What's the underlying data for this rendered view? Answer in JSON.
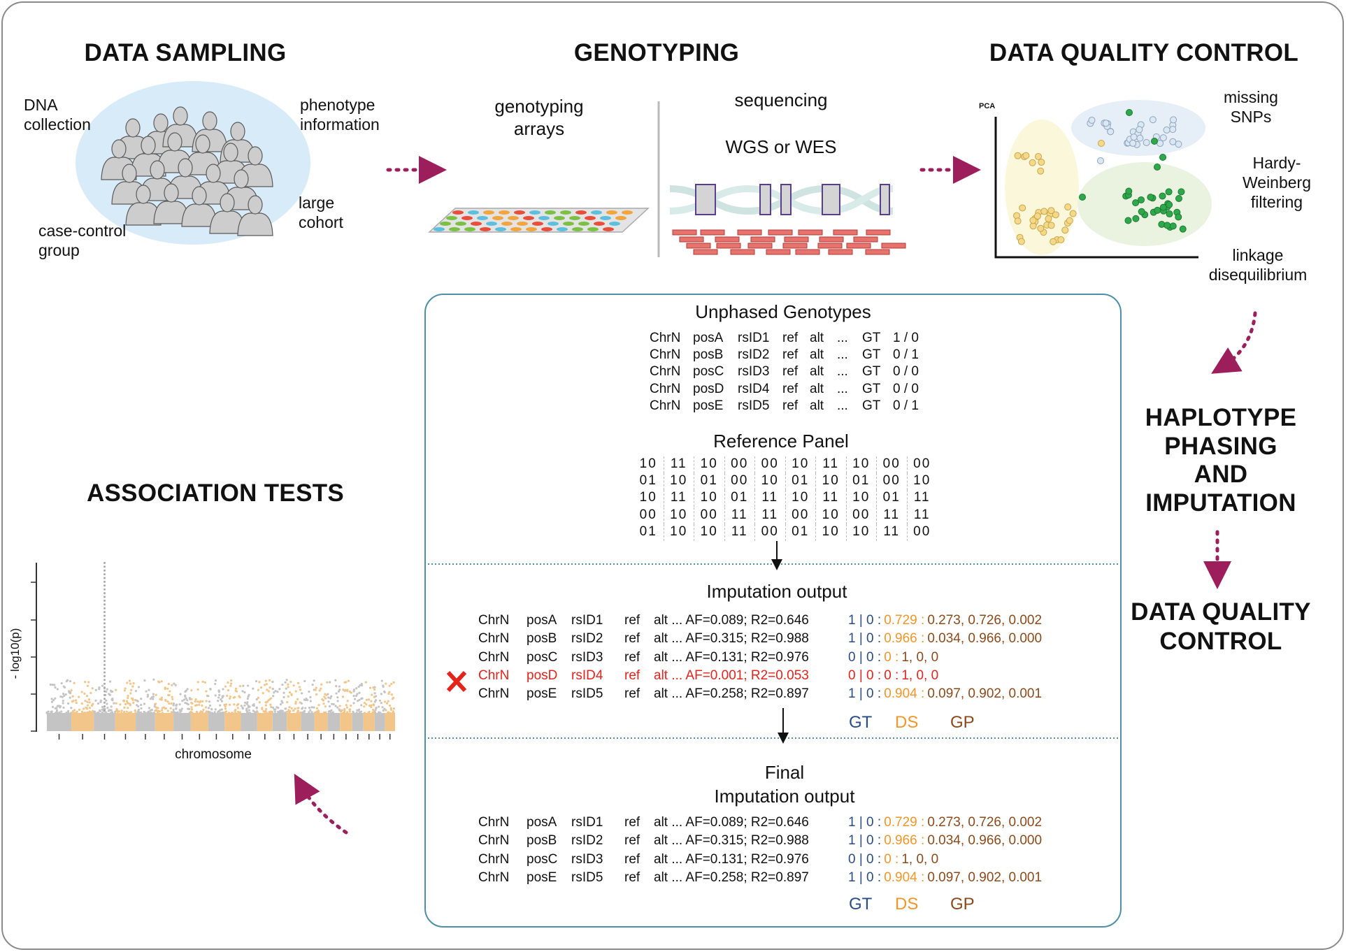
{
  "sections": {
    "data_sampling": {
      "title": "DATA SAMPLING",
      "labels": {
        "dna": "DNA collection",
        "phenotype": "phenotype information",
        "cohort": "large cohort",
        "case_control": "case-control group"
      }
    },
    "genotyping": {
      "title": "GENOTYPING",
      "arrays_label": "genotyping arrays",
      "sequencing_label": "sequencing",
      "wgs_label": "WGS or WES"
    },
    "qc_top": {
      "title": "DATA QUALITY CONTROL",
      "pca_label": "PCA",
      "missing": "missing SNPs",
      "hwe": "Hardy-Weinberg filtering",
      "ld": "linkage disequilibrium"
    },
    "phasing": {
      "title_lines": [
        "HAPLOTYPE",
        "PHASING",
        "AND",
        "IMPUTATION"
      ],
      "qc_lines": [
        "DATA QUALITY",
        "CONTROL"
      ]
    },
    "association": {
      "title": "ASSOCIATION TESTS",
      "ylabel": "- log10(p)",
      "xlabel": "chromosome"
    }
  },
  "colors": {
    "arrow": "#9c1f5c",
    "gt": "#2b4d86",
    "ds": "#f0962a",
    "gp": "#8a4a1c",
    "removed": "#e3241c",
    "panel_border": "#4d8fa6"
  },
  "panel": {
    "unphased": {
      "title": "Unphased Genotypes",
      "rows": [
        {
          "chr": "ChrN",
          "pos": "posA",
          "rsid": "rsID1",
          "ref": "ref",
          "alt": "alt",
          "dots": "...",
          "gt_label": "GT",
          "gt": "1 / 0"
        },
        {
          "chr": "ChrN",
          "pos": "posB",
          "rsid": "rsID2",
          "ref": "ref",
          "alt": "alt",
          "dots": "...",
          "gt_label": "GT",
          "gt": "0 / 1"
        },
        {
          "chr": "ChrN",
          "pos": "posC",
          "rsid": "rsID3",
          "ref": "ref",
          "alt": "alt",
          "dots": "...",
          "gt_label": "GT",
          "gt": "0 / 0"
        },
        {
          "chr": "ChrN",
          "pos": "posD",
          "rsid": "rsID4",
          "ref": "ref",
          "alt": "alt",
          "dots": "...",
          "gt_label": "GT",
          "gt": "0 / 0"
        },
        {
          "chr": "ChrN",
          "pos": "posE",
          "rsid": "rsID5",
          "ref": "ref",
          "alt": "alt",
          "dots": "...",
          "gt_label": "GT",
          "gt": "0 / 1"
        }
      ]
    },
    "reference": {
      "title": "Reference Panel",
      "rows": [
        [
          "10",
          "11",
          "10",
          "00",
          "00",
          "10",
          "11",
          "10",
          "00",
          "00"
        ],
        [
          "01",
          "10",
          "01",
          "00",
          "10",
          "01",
          "10",
          "01",
          "00",
          "10"
        ],
        [
          "10",
          "11",
          "10",
          "01",
          "11",
          "10",
          "11",
          "10",
          "01",
          "11"
        ],
        [
          "00",
          "10",
          "00",
          "11",
          "11",
          "00",
          "10",
          "00",
          "11",
          "11"
        ],
        [
          "01",
          "10",
          "10",
          "11",
          "00",
          "01",
          "10",
          "10",
          "11",
          "00"
        ]
      ]
    },
    "imputation": {
      "title": "Imputation output",
      "rows": [
        {
          "chr": "ChrN",
          "pos": "posA",
          "rsid": "rsID1",
          "ref": "ref",
          "info": "alt ... AF=0.089; R2=0.646",
          "gt": "1 | 0",
          "ds": "0.729",
          "gp": "0.273, 0.726, 0.002",
          "removed": false
        },
        {
          "chr": "ChrN",
          "pos": "posB",
          "rsid": "rsID2",
          "ref": "ref",
          "info": "alt ... AF=0.315; R2=0.988",
          "gt": "1 | 0",
          "ds": "0.966",
          "gp": "0.034, 0.966, 0.000",
          "removed": false
        },
        {
          "chr": "ChrN",
          "pos": "posC",
          "rsid": "rsID3",
          "ref": "ref",
          "info": "alt ... AF=0.131; R2=0.976",
          "gt": "0 | 0",
          "ds": "0",
          "gp": "1, 0, 0",
          "removed": false
        },
        {
          "chr": "ChrN",
          "pos": "posD",
          "rsid": "rsID4",
          "ref": "ref",
          "info": "alt ... AF=0.001; R2=0.053",
          "gt": "0 | 0",
          "ds": "0",
          "gp": "1, 0, 0",
          "removed": true
        },
        {
          "chr": "ChrN",
          "pos": "posE",
          "rsid": "rsID5",
          "ref": "ref",
          "info": "alt ... AF=0.258; R2=0.897",
          "gt": "1 | 0",
          "ds": "0.904",
          "gp": "0.097, 0.902, 0.001",
          "removed": false
        }
      ],
      "legend": {
        "gt": "GT",
        "ds": "DS",
        "gp": "GP"
      }
    },
    "final": {
      "title_lines": [
        "Final",
        "Imputation output"
      ],
      "rows": [
        {
          "chr": "ChrN",
          "pos": "posA",
          "rsid": "rsID1",
          "ref": "ref",
          "info": "alt ... AF=0.089; R2=0.646",
          "gt": "1 | 0",
          "ds": "0.729",
          "gp": "0.273, 0.726, 0.002"
        },
        {
          "chr": "ChrN",
          "pos": "posB",
          "rsid": "rsID2",
          "ref": "ref",
          "info": "alt ... AF=0.315; R2=0.988",
          "gt": "1 | 0",
          "ds": "0.966",
          "gp": "0.034, 0.966, 0.000"
        },
        {
          "chr": "ChrN",
          "pos": "posC",
          "rsid": "rsID3",
          "ref": "ref",
          "info": "alt ... AF=0.131; R2=0.976",
          "gt": "0 | 0",
          "ds": "0",
          "gp": "1, 0, 0"
        },
        {
          "chr": "ChrN",
          "pos": "posE",
          "rsid": "rsID5",
          "ref": "ref",
          "info": "alt ... AF=0.258; R2=0.897",
          "gt": "1 | 0",
          "ds": "0.904",
          "gp": "0.097, 0.902, 0.001"
        }
      ],
      "legend": {
        "gt": "GT",
        "ds": "DS",
        "gp": "GP"
      }
    }
  }
}
